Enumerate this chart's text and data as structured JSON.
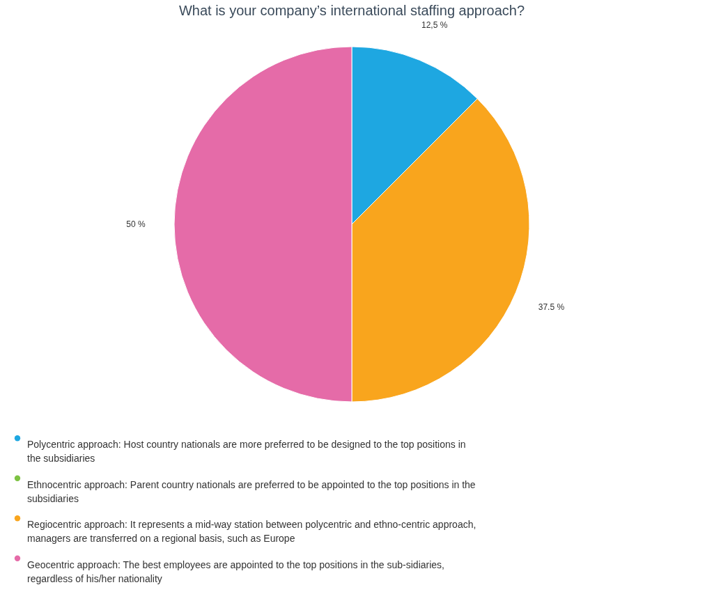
{
  "chart_data": {
    "type": "pie",
    "title": "What is your company’s international staffing approach?",
    "categories": [
      "Polycentric approach: Host country nationals are more preferred to be designed to the top positions in the subsidiaries",
      "Ethnocentric approach: Parent country nationals are preferred to be appointed to the top positions in the subsidiaries",
      "Regiocentric approach: It represents a mid-way station between polycentric and ethno-centric approach, managers are transferred on a regional basis, such as Europe",
      "Geocentric approach: The best employees are appointed to the top positions in the sub-sidiaries, regardless of his/her nationality"
    ],
    "values": [
      12.5,
      0,
      37.5,
      50
    ],
    "value_labels": [
      "12,5 %",
      null,
      "37.5 %",
      "50 %"
    ],
    "colors": [
      "#1ea7e1",
      "#7dc242",
      "#f9a51d",
      "#e56ba8"
    ],
    "legend": "bottom"
  }
}
